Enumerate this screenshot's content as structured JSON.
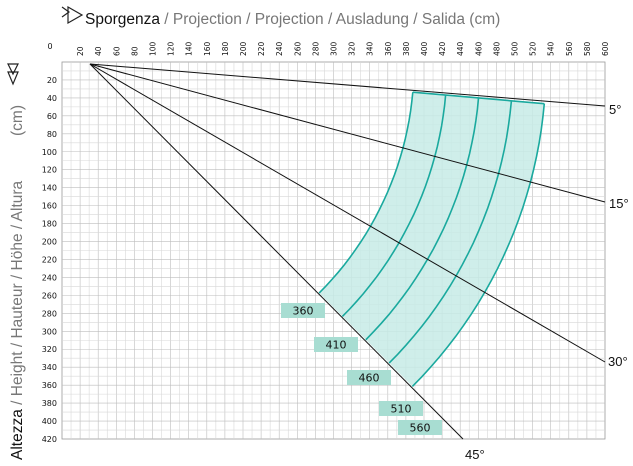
{
  "header": {
    "projection_main": "Sporgenza",
    "projection_rest": " / Projection / Projection / Ausladung / Salida (cm)",
    "height_main": "Altezza",
    "height_rest": " / Height / Hauteur / Höhe / Altura",
    "height_unit": "(cm)"
  },
  "origin_label": "0",
  "x_ticks": [
    "20",
    "40",
    "60",
    "80",
    "100",
    "120",
    "140",
    "160",
    "180",
    "200",
    "220",
    "240",
    "260",
    "280",
    "300",
    "320",
    "340",
    "360",
    "380",
    "400",
    "420",
    "440",
    "460",
    "480",
    "500",
    "520",
    "540",
    "560",
    "580",
    "600"
  ],
  "y_ticks": [
    "20",
    "40",
    "60",
    "80",
    "100",
    "120",
    "140",
    "160",
    "180",
    "200",
    "220",
    "240",
    "260",
    "280",
    "300",
    "320",
    "340",
    "360",
    "380",
    "400",
    "420"
  ],
  "angle_labels": [
    "5°",
    "15°",
    "30°",
    "45°"
  ],
  "length_labels": [
    "360",
    "410",
    "460",
    "510",
    "560"
  ],
  "colors": {
    "fill": "#c7ebe6",
    "teal": "#1aa99e",
    "label_bg": "#a8ddd2",
    "grid": "#b8b8b8",
    "line": "#111111"
  },
  "icons": [
    "projection-arrow-icon",
    "height-arrow-icon"
  ]
}
